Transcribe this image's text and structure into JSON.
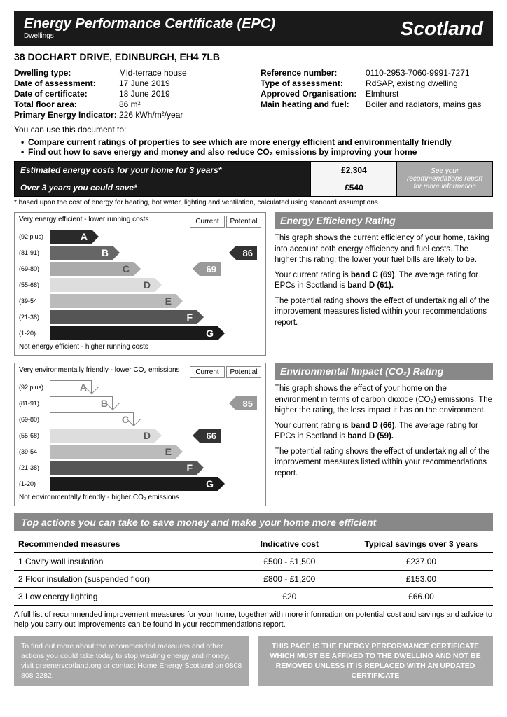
{
  "header": {
    "title": "Energy Performance Certificate (EPC)",
    "sub": "Dwellings",
    "region": "Scotland"
  },
  "address": "38 DOCHART DRIVE, EDINBURGH, EH4 7LB",
  "info_left": [
    {
      "label": "Dwelling type:",
      "value": "Mid-terrace house"
    },
    {
      "label": "Date of assessment:",
      "value": "17 June 2019"
    },
    {
      "label": "Date of certificate:",
      "value": "18 June 2019"
    },
    {
      "label": "Total floor area:",
      "value": "86 m²"
    },
    {
      "label": "Primary Energy Indicator:",
      "value": "226 kWh/m²/year"
    }
  ],
  "info_right": [
    {
      "label": "Reference number:",
      "value": "0110-2953-7060-9991-7271"
    },
    {
      "label": "Type of assessment:",
      "value": "RdSAP, existing dwelling"
    },
    {
      "label": "Approved Organisation:",
      "value": "Elmhurst"
    },
    {
      "label": "Main heating and fuel:",
      "value": "Boiler and radiators, mains gas"
    }
  ],
  "use_doc": "You can use this document to:",
  "bullets": [
    "Compare current ratings of properties to see which are more energy efficient and environmentally friendly",
    "Find out how to save energy and money and also reduce CO₂ emissions by improving your home"
  ],
  "costs": {
    "row1_label": "Estimated energy costs for your home for 3 years*",
    "row1_val": "£2,304",
    "row2_label": "Over 3 years you could save*",
    "row2_val": "£540",
    "reco": "See your recommendations report for more information"
  },
  "footnote": "* based upon the cost of energy for heating, hot water, lighting and ventilation, calculated using standard assumptions",
  "bands": [
    "(92 plus)",
    "(81-91)",
    "(69-80)",
    "(55-68)",
    "(39-54",
    "(21-38)",
    "(1-20)"
  ],
  "letters": [
    "A",
    "B",
    "C",
    "D",
    "E",
    "F",
    "G"
  ],
  "col_current": "Current",
  "col_potential": "Potential",
  "chart1": {
    "top": "Very energy efficient - lower running costs",
    "bottom": "Not energy efficient - higher running costs",
    "current": "69",
    "potential": "86",
    "title": "Energy Efficiency Rating",
    "p1": "This graph shows the current efficiency of your home, taking into account both energy efficiency and fuel costs. The higher this rating, the lower your fuel bills are likely to be.",
    "p2": "Your current rating is band C (69). The average rating for EPCs in Scotland is band D (61).",
    "p3": "The potential rating shows the effect of undertaking all of the improvement measures listed within your recommendations report."
  },
  "chart2": {
    "top": "Very environmentally friendly - lower CO₂ emissions",
    "bottom": "Not environmentally friendly - higher CO₂ emissions",
    "current": "66",
    "potential": "85",
    "title": "Environmental Impact (CO₂) Rating",
    "p1": "This graph shows the effect of your home on the environment in terms of carbon dioxide (CO₂) emissions. The higher the rating, the less impact it has on the environment.",
    "p2": "Your current rating is band D (66). The average rating for EPCs in Scotland is band D (59).",
    "p3": "The potential rating shows the effect of undertaking all of the improvement measures listed within your recommendations report."
  },
  "actions": {
    "title": "Top actions you can take to save money and make your home more efficient",
    "h1": "Recommended measures",
    "h2": "Indicative cost",
    "h3": "Typical savings over 3 years",
    "rows": [
      {
        "m": "1 Cavity wall insulation",
        "c": "£500 - £1,500",
        "s": "£237.00"
      },
      {
        "m": "2 Floor insulation (suspended floor)",
        "c": "£800 - £1,200",
        "s": "£153.00"
      },
      {
        "m": "3 Low energy lighting",
        "c": "£20",
        "s": "£66.00"
      }
    ]
  },
  "full_note": "A full list of recommended improvement measures for your home, together with more information on potential cost and savings and advice to help you carry out improvements can be found in your recommendations report.",
  "box_left": "To find out more about the recommended measures and other actions you could take today to stop wasting energy and money, visit greenerscotland.org or contact Home Energy Scotland on 0808 808 2282.",
  "box_right": "THIS PAGE IS THE ENERGY PERFORMANCE CERTIFICATE WHICH MUST BE AFFIXED TO THE DWELLING AND NOT BE REMOVED UNLESS IT IS REPLACED WITH AN UPDATED CERTIFICATE"
}
